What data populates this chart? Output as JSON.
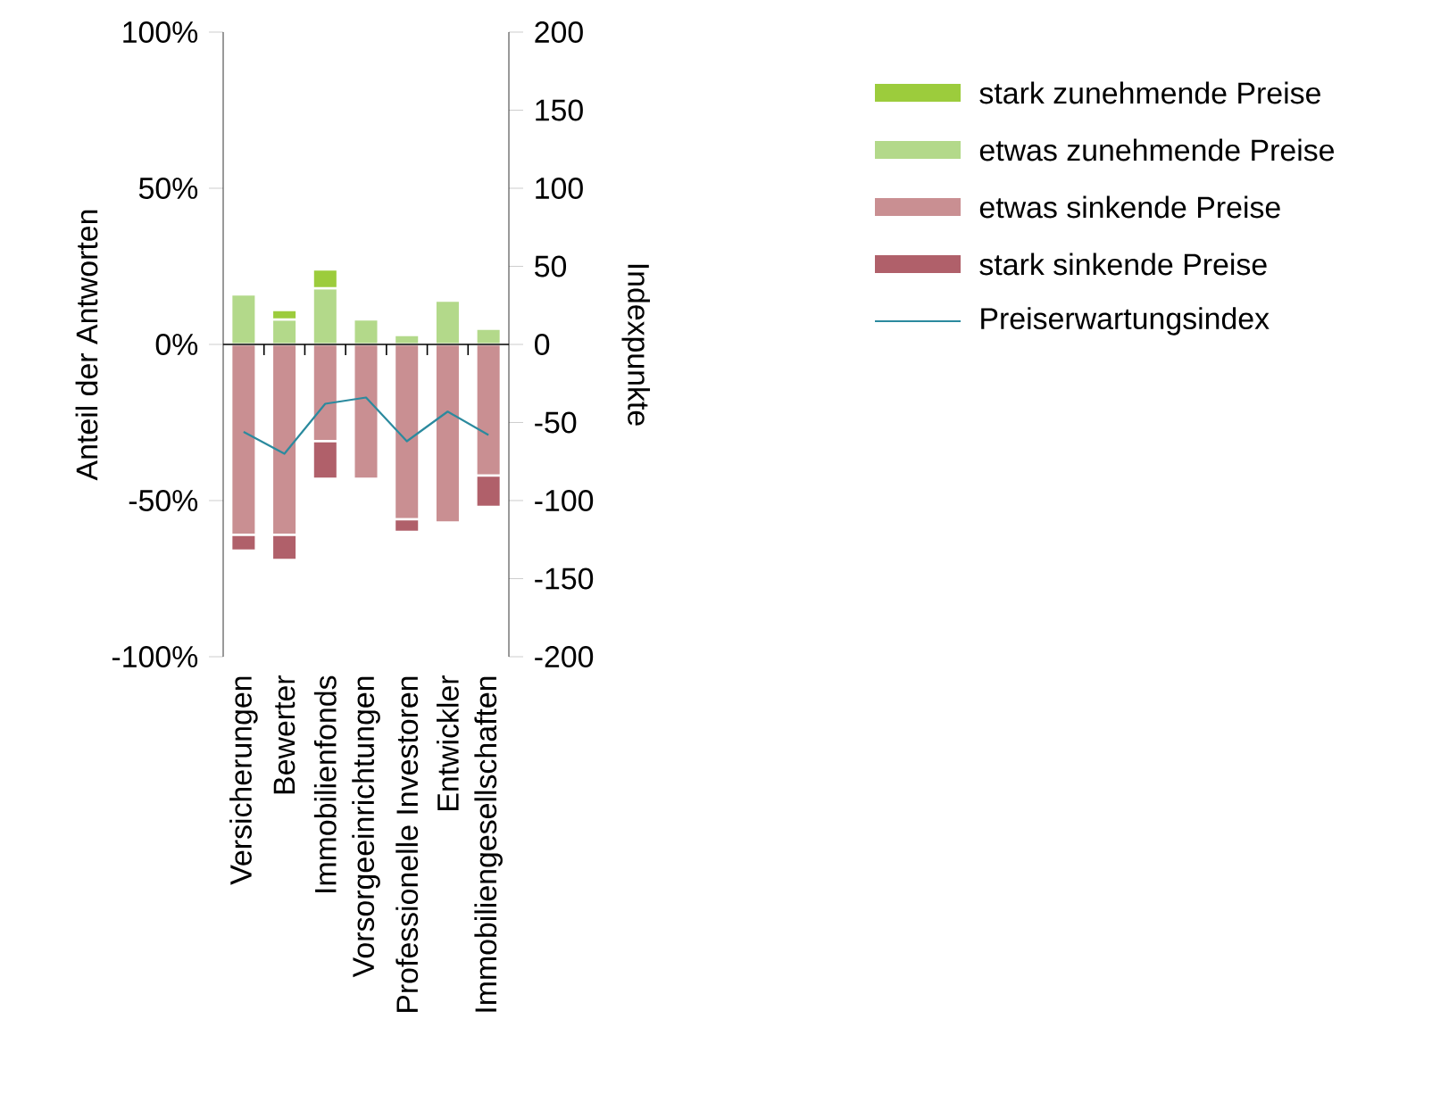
{
  "chart_data": {
    "type": "bar",
    "stacked": true,
    "categories": [
      "Versicherungen",
      "Bewerter",
      "Immobilienfonds",
      "Vorsorgeeinrichtungen",
      "Professionelle Investoren",
      "Entwickler",
      "Immobiliengesellschaften"
    ],
    "series": [
      {
        "name": "etwas zunehmende Preise",
        "color": "#b3d98a",
        "values": [
          16,
          8,
          18,
          8,
          3,
          14,
          5
        ]
      },
      {
        "name": "stark zunehmende Preise",
        "color": "#9ccc3c",
        "values": [
          0,
          3,
          6,
          0,
          0,
          0,
          0
        ]
      },
      {
        "name": "etwas sinkende Preise",
        "color": "#c98f92",
        "values": [
          -61,
          -61,
          -31,
          -43,
          -56,
          -57,
          -42
        ]
      },
      {
        "name": "stark sinkende Preise",
        "color": "#b0606a",
        "values": [
          -5,
          -8,
          -12,
          0,
          -4,
          0,
          -10
        ]
      },
      {
        "name": "Preiserwartungsindex",
        "type": "line",
        "axis": "y2",
        "color": "#2b8a9e",
        "values": [
          -56,
          -70,
          -38,
          -34,
          -62,
          -43,
          -58
        ]
      }
    ],
    "ylabel": "Anteil der Antworten",
    "y2label": "Indexpunkte",
    "ylim": [
      -100,
      100
    ],
    "yticks": [
      {
        "value": -100,
        "label": "-100%"
      },
      {
        "value": -50,
        "label": "-50%"
      },
      {
        "value": 0,
        "label": "0%"
      },
      {
        "value": 50,
        "label": "50%"
      },
      {
        "value": 100,
        "label": "100%"
      }
    ],
    "y2lim": [
      -200,
      200
    ],
    "y2ticks": [
      -200,
      -150,
      -100,
      -50,
      0,
      50,
      100,
      150,
      200
    ],
    "legend": "top right"
  }
}
